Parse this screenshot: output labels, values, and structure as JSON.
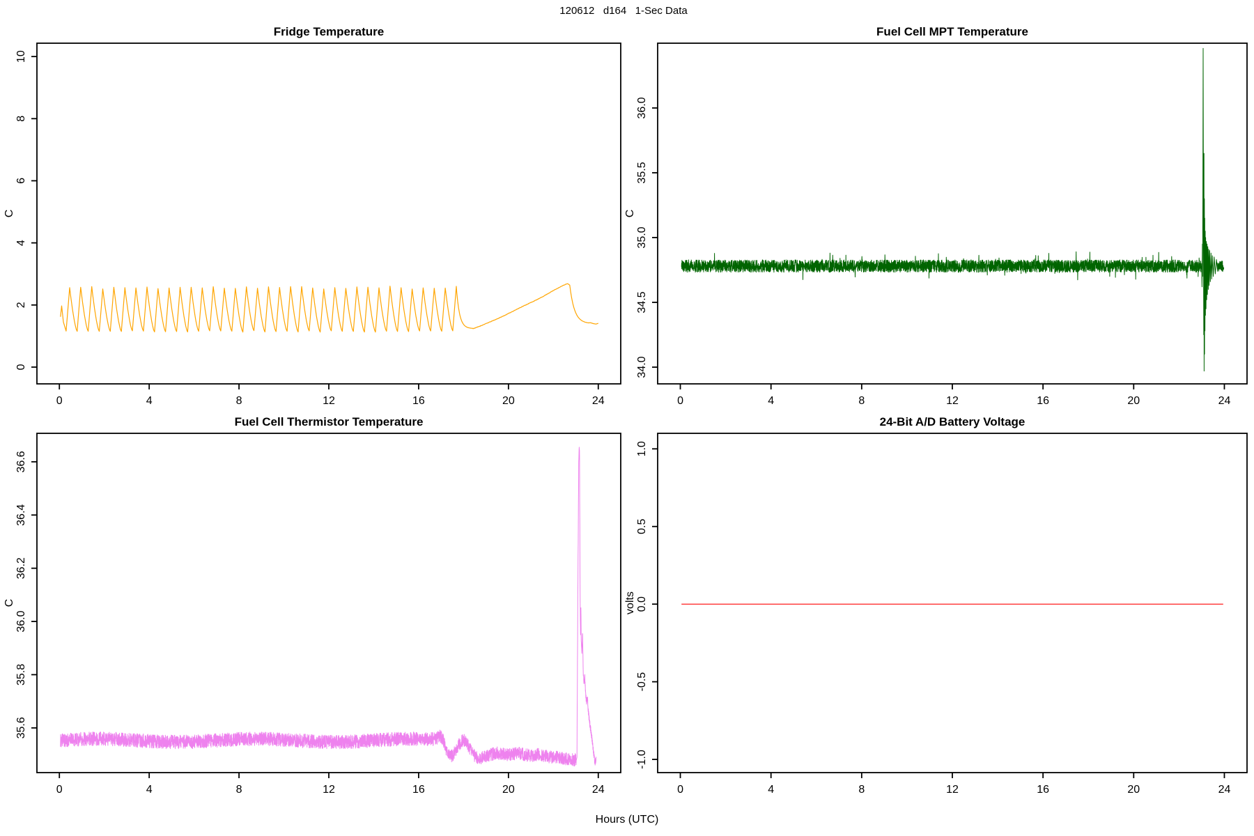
{
  "page": {
    "main_title": "120612   d164   1-Sec Data",
    "xlabel": "Hours (UTC)"
  },
  "chart_data": [
    {
      "type": "line",
      "title": "Fridge Temperature",
      "ylabel": "C",
      "color": "#FFA500",
      "line_width": 1.2,
      "xlim": [
        -1,
        25
      ],
      "ylim": [
        -0.54,
        10.43
      ],
      "x_ticks": [
        0,
        4,
        8,
        12,
        16,
        20,
        24
      ],
      "x_tick_labels": [
        "0",
        "4",
        "8",
        "12",
        "16",
        "20",
        "24"
      ],
      "y_ticks": [
        0,
        2,
        4,
        6,
        8,
        10
      ],
      "y_tick_labels": [
        "0",
        "2",
        "4",
        "6",
        "8",
        "10"
      ],
      "grid": false,
      "series_model": {
        "kind": "fridge_cycle",
        "description": "Sawtooth cycling between ~1.15 and ~2.56 C every ~0.49 h from 0 to ~17.7 h, then smooth dip to 1.24 C, slow ramp to 2.68 C at 22.6 h, and decay to ~1.4 C by 24 h",
        "intro": [
          [
            0.05,
            1.62
          ],
          [
            0.1,
            1.97
          ],
          [
            0.18,
            1.45
          ],
          [
            0.3,
            1.16
          ]
        ],
        "osc": {
          "t_end": 17.72,
          "period": 0.492,
          "rise_frac": 0.32,
          "vmin": 1.15,
          "vmax": 2.56,
          "peak_jitter": 0.05,
          "min_jitter": 0.025
        },
        "last_peak": 2.6,
        "drop": {
          "tau": 0.14,
          "base": 1.24,
          "t_end": 18.42
        },
        "ramp": {
          "t0": 18.42,
          "t1": 22.56,
          "v0": 1.24,
          "v1": 2.67,
          "pow": 1.12,
          "wiggle_amp": 0.013,
          "wiggle_n": 5,
          "noise": 0.006
        },
        "top": [
          [
            22.56,
            2.67
          ],
          [
            22.64,
            2.685
          ],
          [
            22.73,
            2.64
          ]
        ],
        "fall": {
          "t0": 22.73,
          "v0": 2.64,
          "tau": 0.21,
          "base": 1.4,
          "t_end": 23.58
        },
        "tail": [
          [
            23.65,
            1.43
          ],
          [
            23.78,
            1.4
          ],
          [
            23.9,
            1.385
          ],
          [
            24.0,
            1.41
          ]
        ]
      }
    },
    {
      "type": "line",
      "title": "Fuel Cell MPT Temperature",
      "ylabel": "C",
      "color": "#006400",
      "line_width": 1.0,
      "xlim": [
        -1,
        25
      ],
      "ylim": [
        33.871,
        36.5
      ],
      "x_ticks": [
        0,
        4,
        8,
        12,
        16,
        20,
        24
      ],
      "x_tick_labels": [
        "0",
        "4",
        "8",
        "12",
        "16",
        "20",
        "24"
      ],
      "y_ticks": [
        34.0,
        34.5,
        35.0,
        35.5,
        36.0
      ],
      "y_tick_labels": [
        "34.0",
        "34.5",
        "35.0",
        "35.5",
        "36.0"
      ],
      "grid": false,
      "series_model": {
        "kind": "noise_ring",
        "description": "Noisy 1-sec data flat at ~34.78 C (band +/-0.05) for 0-23 h, damped ringing transient at ~23.1 h peaking 36.46 C and dipping to 33.97 C, settling back to 34.78 C by 24 h",
        "pre": {
          "t0": 0.05,
          "t1": 22.99,
          "dt": 0.006,
          "base": 34.78,
          "noise": 0.048,
          "spray_p": 0.02,
          "spray_extra": 0.05
        },
        "ring": [
          [
            23.0,
            34.8
          ],
          [
            23.015,
            34.62
          ],
          [
            23.03,
            34.95
          ],
          [
            23.04,
            34.7
          ],
          [
            23.05,
            35.3
          ],
          [
            23.065,
            36.46
          ],
          [
            23.08,
            34.9
          ],
          [
            23.09,
            34.25
          ],
          [
            23.1,
            35.65
          ],
          [
            23.108,
            33.97
          ],
          [
            23.118,
            35.3
          ],
          [
            23.126,
            34.1
          ],
          [
            23.135,
            35.15
          ],
          [
            23.145,
            34.28
          ],
          [
            23.155,
            35.05
          ],
          [
            23.165,
            34.4
          ],
          [
            23.175,
            35.0
          ],
          [
            23.19,
            34.45
          ],
          [
            23.205,
            34.97
          ],
          [
            23.22,
            34.52
          ],
          [
            23.235,
            34.95
          ],
          [
            23.25,
            34.56
          ],
          [
            23.27,
            34.93
          ],
          [
            23.29,
            34.6
          ],
          [
            23.31,
            34.91
          ],
          [
            23.33,
            34.63
          ],
          [
            23.35,
            34.9
          ],
          [
            23.38,
            34.66
          ],
          [
            23.41,
            34.88
          ],
          [
            23.44,
            34.68
          ],
          [
            23.47,
            34.86
          ],
          [
            23.51,
            34.7
          ],
          [
            23.55,
            34.85
          ],
          [
            23.6,
            34.72
          ],
          [
            23.65,
            34.83
          ],
          [
            23.7,
            34.74
          ]
        ],
        "post": {
          "t0": 23.705,
          "t1": 23.98,
          "dt": 0.006,
          "base": 34.78,
          "noise": 0.042
        }
      }
    },
    {
      "type": "line",
      "title": "Fuel Cell Thermistor Temperature",
      "ylabel": "C",
      "color": "#EE82EE",
      "line_width": 1.0,
      "xlim": [
        -1,
        25
      ],
      "ylim": [
        35.432,
        36.707
      ],
      "x_ticks": [
        0,
        4,
        8,
        12,
        16,
        20,
        24
      ],
      "x_tick_labels": [
        "0",
        "4",
        "8",
        "12",
        "16",
        "20",
        "24"
      ],
      "y_ticks": [
        35.6,
        35.8,
        36.0,
        36.2,
        36.4,
        36.6
      ],
      "y_tick_labels": [
        "35.6",
        "35.8",
        "36.0",
        "36.2",
        "36.4",
        "36.6"
      ],
      "grid": false,
      "series_model": {
        "kind": "noise_spike",
        "description": "Noisy band at ~35.55 C for 0-17 h, gentle meander down to ~35.48 C between 17 and 23 h, sharp spike to 36.655 C at ~23.15 h, then stepped decay back to ~35.47 C by 23.9 h",
        "flat": {
          "t0": 0.05,
          "t1": 16.7,
          "dt": 0.006,
          "base": 35.553,
          "noise": 0.026,
          "slow_amp": 0.006,
          "slow_period": 7.0
        },
        "wander": [
          [
            16.7,
            35.555
          ],
          [
            16.95,
            35.57
          ],
          [
            17.1,
            35.555
          ],
          [
            17.3,
            35.5
          ],
          [
            17.5,
            35.495
          ],
          [
            17.75,
            35.53
          ],
          [
            17.95,
            35.555
          ],
          [
            18.1,
            35.55
          ],
          [
            18.3,
            35.52
          ],
          [
            18.5,
            35.495
          ],
          [
            18.7,
            35.485
          ],
          [
            18.9,
            35.49
          ],
          [
            19.2,
            35.5
          ],
          [
            19.5,
            35.505
          ],
          [
            19.8,
            35.5
          ],
          [
            20.1,
            35.5
          ],
          [
            20.4,
            35.505
          ],
          [
            20.7,
            35.5
          ],
          [
            21.0,
            35.495
          ],
          [
            21.3,
            35.5
          ],
          [
            21.6,
            35.495
          ],
          [
            21.9,
            35.49
          ],
          [
            22.2,
            35.49
          ],
          [
            22.5,
            35.485
          ],
          [
            22.8,
            35.48
          ],
          [
            23.02,
            35.48
          ]
        ],
        "wander_noise": 0.024,
        "wander_dt": 0.006,
        "spike": [
          [
            23.05,
            35.49
          ],
          [
            23.09,
            36.1
          ],
          [
            23.13,
            36.6
          ],
          [
            23.15,
            36.655
          ],
          [
            23.165,
            36.64
          ],
          [
            23.19,
            36.1
          ],
          [
            23.21,
            35.95
          ],
          [
            23.225,
            36.06
          ],
          [
            23.24,
            35.93
          ],
          [
            23.27,
            35.88
          ],
          [
            23.3,
            35.96
          ],
          [
            23.33,
            35.8
          ],
          [
            23.37,
            35.77
          ],
          [
            23.4,
            35.79
          ],
          [
            23.44,
            35.72
          ],
          [
            23.48,
            35.7
          ],
          [
            23.52,
            35.71
          ],
          [
            23.56,
            35.66
          ],
          [
            23.6,
            35.63
          ],
          [
            23.65,
            35.6
          ],
          [
            23.7,
            35.57
          ],
          [
            23.75,
            35.54
          ],
          [
            23.8,
            35.5
          ],
          [
            23.85,
            35.47
          ],
          [
            23.9,
            35.48
          ]
        ],
        "spike_noise": 0.012,
        "spike_noise_after": 23.3,
        "spike_dt": 0.004
      }
    },
    {
      "type": "line",
      "title": "24-Bit A/D Battery Voltage",
      "ylabel": "volts",
      "color": "#FF0000",
      "line_width": 1.2,
      "xlim": [
        -1,
        25
      ],
      "ylim": [
        -1.085,
        1.1
      ],
      "x_ticks": [
        0,
        4,
        8,
        12,
        16,
        20,
        24
      ],
      "x_tick_labels": [
        "0",
        "4",
        "8",
        "12",
        "16",
        "20",
        "24"
      ],
      "y_ticks": [
        -1.0,
        -0.5,
        0.0,
        0.5,
        1.0
      ],
      "y_tick_labels": [
        "-1.0",
        "-0.5",
        "0.0",
        "0.5",
        "1.0"
      ],
      "grid": false,
      "series_model": {
        "kind": "flat_line",
        "description": "Constant 0.0 volts across 0-24 h",
        "t0": 0.05,
        "t1": 23.95,
        "value": 0.0
      }
    }
  ]
}
